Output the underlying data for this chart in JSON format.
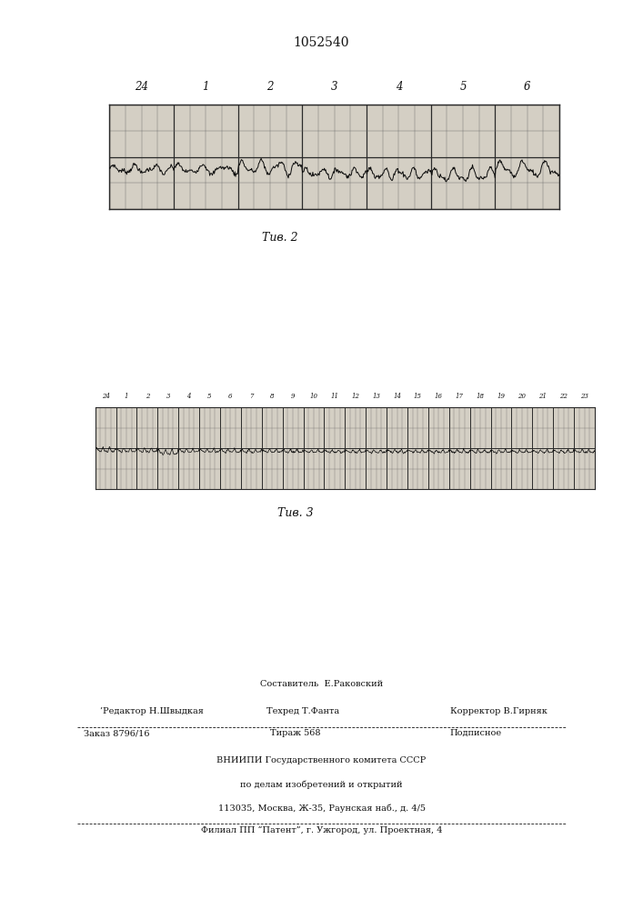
{
  "title": "1052540",
  "fig2_caption": "Τив. 2",
  "fig3_caption": "Τив. 3",
  "fig2_labels": [
    "24",
    "1",
    "2",
    "3",
    "4",
    "5",
    "6"
  ],
  "fig3_labels": [
    "24",
    "1",
    "2",
    "3",
    "4",
    "5",
    "6",
    "7",
    "8",
    "9",
    "10",
    "11",
    "12",
    "13",
    "14",
    "15",
    "16",
    "17",
    "18",
    "19",
    "20",
    "21",
    "22",
    "23"
  ],
  "chart_bg": "#d4cfc4",
  "page_bg": "#ffffff",
  "line_col": "#1a1a1a",
  "grid_major": "#2a2a2a",
  "grid_minor": "#666666"
}
